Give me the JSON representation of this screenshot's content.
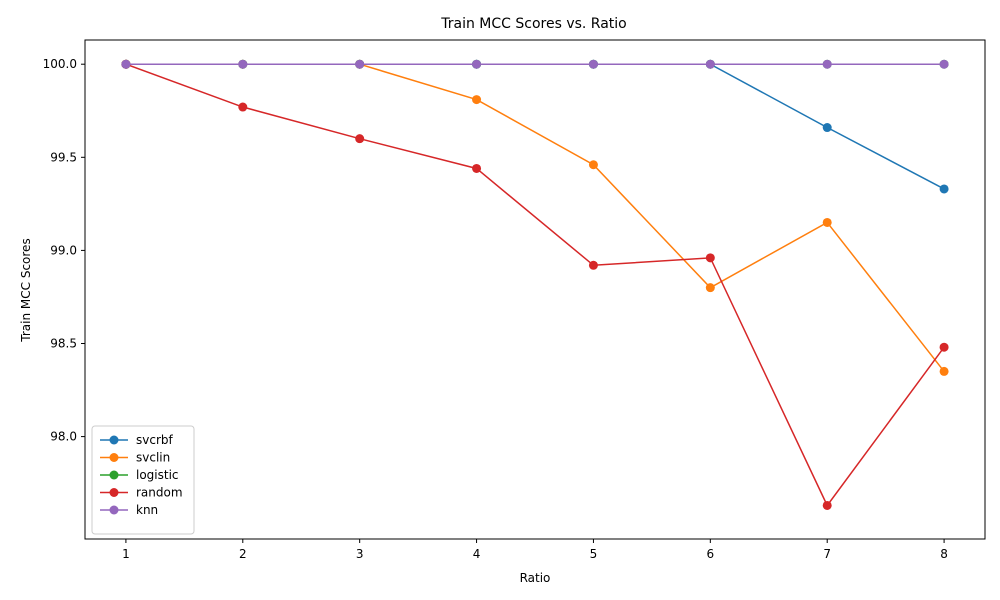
{
  "chart_data": {
    "type": "line",
    "title": "Train MCC Scores vs. Ratio",
    "xlabel": "Ratio",
    "ylabel": "Train MCC Scores",
    "x": [
      1,
      2,
      3,
      4,
      5,
      6,
      7,
      8
    ],
    "x_ticks": [
      "1",
      "2",
      "3",
      "4",
      "5",
      "6",
      "7",
      "8"
    ],
    "y_ticks": [
      "98.0",
      "98.5",
      "99.0",
      "99.5",
      "100.0"
    ],
    "y_tick_values": [
      98.0,
      98.5,
      99.0,
      99.5,
      100.0
    ],
    "xlim": [
      0.65,
      8.35
    ],
    "ylim": [
      97.45,
      100.13
    ],
    "grid": false,
    "legend_position": "lower-left",
    "series": [
      {
        "name": "svcrbf",
        "color": "#1f77b4",
        "values": [
          100.0,
          100.0,
          100.0,
          100.0,
          100.0,
          100.0,
          99.66,
          99.33
        ]
      },
      {
        "name": "svclin",
        "color": "#ff7f0e",
        "values": [
          100.0,
          100.0,
          100.0,
          99.81,
          99.46,
          98.8,
          99.15,
          98.35
        ]
      },
      {
        "name": "logistic",
        "color": "#2ca02c",
        "values": [
          100.0,
          100.0,
          100.0,
          100.0,
          100.0,
          100.0,
          100.0,
          100.0
        ]
      },
      {
        "name": "random",
        "color": "#d62728",
        "values": [
          100.0,
          99.77,
          99.6,
          99.44,
          98.92,
          98.96,
          97.63,
          98.48
        ]
      },
      {
        "name": "knn",
        "color": "#9467bd",
        "values": [
          100.0,
          100.0,
          100.0,
          100.0,
          100.0,
          100.0,
          100.0,
          100.0
        ]
      }
    ]
  }
}
